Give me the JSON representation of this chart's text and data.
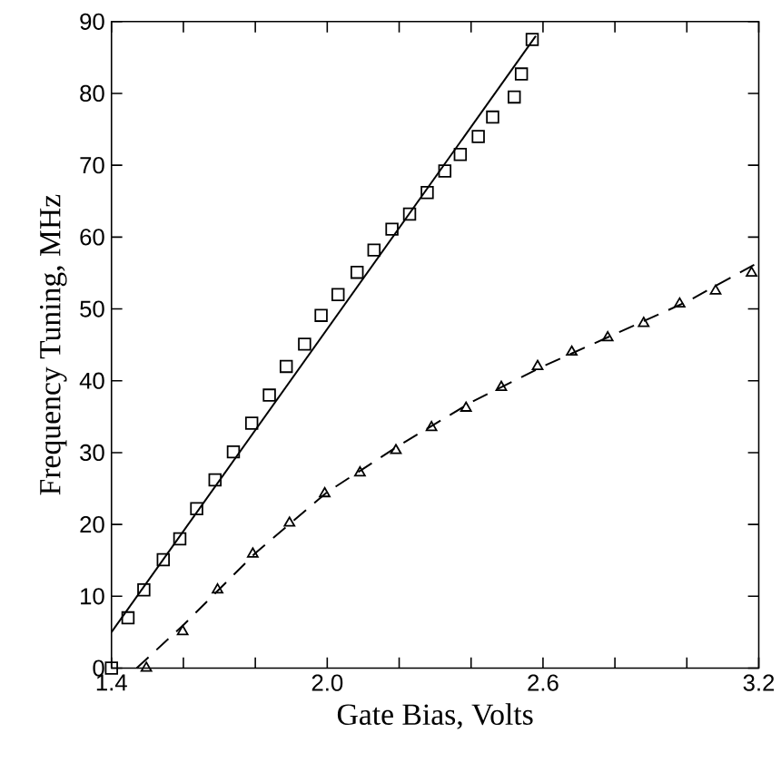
{
  "chart_data": {
    "type": "scatter",
    "xlabel": "Gate Bias, Volts",
    "ylabel": "Frequency Tuning, MHz",
    "xlim": [
      1.4,
      3.2
    ],
    "ylim": [
      0,
      90
    ],
    "xticks": [
      1.4,
      {
        "value": 1.6,
        "label": null
      },
      {
        "value": 1.8,
        "label": null
      },
      {
        "value": 2.0,
        "label": "2.0"
      },
      {
        "value": 2.2,
        "label": null
      },
      {
        "value": 2.4,
        "label": null
      },
      2.6,
      {
        "value": 2.8,
        "label": null
      },
      {
        "value": 3.0,
        "label": null
      },
      3.2
    ],
    "yticks": [
      0,
      10,
      20,
      30,
      40,
      50,
      60,
      70,
      80,
      90
    ],
    "grid": false,
    "series": [
      {
        "marker": "square",
        "color": "#000000",
        "x": [
          1.4,
          1.446,
          1.49,
          1.544,
          1.59,
          1.637,
          1.688,
          1.739,
          1.79,
          1.839,
          1.886,
          1.937,
          1.983,
          2.03,
          2.083,
          2.13,
          2.18,
          2.229,
          2.278,
          2.327,
          2.37,
          2.42,
          2.46,
          2.52,
          2.54,
          2.57
        ],
        "values": [
          0,
          7,
          10.9,
          15.1,
          18,
          22.2,
          26.2,
          30.1,
          34.1,
          38,
          42,
          45.1,
          49.1,
          52,
          55.1,
          58.2,
          61.1,
          63.2,
          66.2,
          69.2,
          71.5,
          74,
          76.7,
          79.5,
          82.7,
          87.5
        ]
      },
      {
        "type": "line",
        "line_style": "solid",
        "color": "#000000",
        "x": [
          1.4,
          2.58
        ],
        "values": [
          5,
          88
        ]
      },
      {
        "marker": "triangle",
        "color": "#000000",
        "x": [
          1.497,
          1.598,
          1.695,
          1.793,
          1.895,
          1.993,
          2.091,
          2.191,
          2.29,
          2.386,
          2.484,
          2.585,
          2.68,
          2.78,
          2.88,
          2.98,
          3.08,
          3.18
        ],
        "values": [
          0,
          5.1,
          10.9,
          15.9,
          20.2,
          24.3,
          27.2,
          30.3,
          33.5,
          36.2,
          39.1,
          42,
          44,
          46,
          48,
          50.7,
          52.5,
          55
        ]
      },
      {
        "type": "line",
        "line_style": "dashed",
        "color": "#000000",
        "x": [
          1.47,
          1.6,
          1.8,
          2.0,
          2.2,
          2.4,
          2.6,
          2.8,
          3.0,
          3.2
        ],
        "values": [
          0,
          6,
          16,
          24.5,
          31,
          37,
          42,
          46.5,
          51,
          56.5
        ]
      }
    ]
  }
}
